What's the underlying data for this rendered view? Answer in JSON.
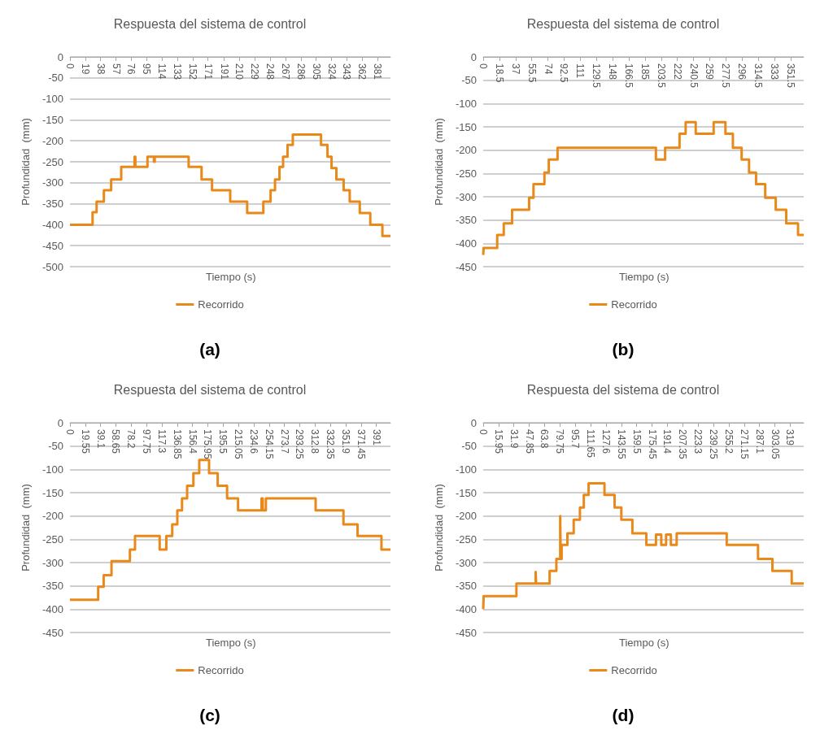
{
  "chart_data": [
    {
      "type": "step",
      "title": "Respuesta del sistema de control",
      "xlabel": "Tiempo (s)",
      "ylabel": "Profundidad  (mm)",
      "annotations": [
        "(a)"
      ],
      "legend": "bottom",
      "grid": "y",
      "xlim": [
        0,
        397
      ],
      "xticks": [
        0,
        19,
        38,
        57,
        76,
        95,
        114,
        133,
        152,
        171,
        191,
        210,
        229,
        248,
        267,
        286,
        305,
        324,
        343,
        362,
        381
      ],
      "ylim": [
        -500,
        0
      ],
      "yticks": [
        -500,
        -450,
        -400,
        -350,
        -300,
        -250,
        -200,
        -150,
        -100,
        -50,
        0
      ],
      "series": [
        {
          "name": "Recorrido",
          "color": "#e8891a",
          "x": [
            0,
            28,
            33,
            42,
            51,
            63.5,
            80,
            81,
            96,
            104,
            105,
            147,
            163,
            176,
            198.5,
            219.5,
            239.5,
            248.5,
            254,
            259.5,
            264,
            269.5,
            276,
            311,
            319,
            324,
            330,
            339,
            346.5,
            359,
            372,
            387,
            397
          ],
          "values": [
            -400,
            -370,
            -345,
            -318,
            -292,
            -262,
            -238,
            -262,
            -238,
            -250,
            -238,
            -262,
            -292,
            -318,
            -345,
            -372,
            -345,
            -318,
            -292,
            -262,
            -238,
            -210,
            -185,
            -210,
            -238,
            -265,
            -292,
            -318,
            -345,
            -372,
            -400,
            -427,
            -427
          ]
        }
      ]
    },
    {
      "type": "step",
      "title": "Respuesta del sistema de control",
      "xlabel": "Tiempo (s)",
      "ylabel": "Profundidad  (mm)",
      "annotations": [
        "(b)"
      ],
      "legend": "bottom",
      "grid": "y",
      "xlim": [
        0,
        366.5
      ],
      "xticks": [
        0,
        18.5,
        37,
        55.5,
        74,
        92.5,
        111,
        129.5,
        148,
        166.5,
        185,
        203.5,
        222,
        240.5,
        259,
        277.5,
        296,
        314.5,
        333,
        351.5
      ],
      "ylim": [
        -450,
        0
      ],
      "yticks": [
        -450,
        -400,
        -350,
        -300,
        -250,
        -200,
        -150,
        -100,
        -50,
        0
      ],
      "series": [
        {
          "name": "Recorrido",
          "color": "#e8891a",
          "x": [
            0,
            0.5,
            16,
            23.5,
            33,
            52.5,
            57.5,
            70,
            75,
            85,
            197.5,
            208,
            224.5,
            231.5,
            243,
            263.5,
            277,
            285.5,
            295.5,
            304,
            312,
            322.5,
            334.5,
            346.5,
            360,
            366.5
          ],
          "values": [
            -425,
            -410,
            -382,
            -357,
            -328,
            -302,
            -273,
            -248,
            -220,
            -195,
            -220,
            -195,
            -165,
            -140,
            -165,
            -140,
            -165,
            -195,
            -220,
            -248,
            -273,
            -302,
            -328,
            -357,
            -382,
            -382
          ]
        }
      ]
    },
    {
      "type": "step",
      "title": "Respuesta del sistema de control",
      "xlabel": "Tiempo (s)",
      "ylabel": "Profundidad  (mm)",
      "annotations": [
        "(c)"
      ],
      "legend": "bottom",
      "grid": "y",
      "xlim": [
        0,
        409
      ],
      "xticks": [
        0,
        19.55,
        39.1,
        58.65,
        78.2,
        97.75,
        117.3,
        136.85,
        156.4,
        175.95,
        195.5,
        215.05,
        234.6,
        254.15,
        273.7,
        293.25,
        312.8,
        332.35,
        351.9,
        371.45,
        391
      ],
      "ylim": [
        -450,
        0
      ],
      "yticks": [
        -450,
        -400,
        -350,
        -300,
        -250,
        -200,
        -150,
        -100,
        -50,
        0
      ],
      "series": [
        {
          "name": "Recorrido",
          "color": "#e8891a",
          "x": [
            0,
            36,
            43,
            53,
            76.5,
            83,
            114.5,
            123,
            130.5,
            137,
            143,
            149.5,
            157.5,
            165,
            177.5,
            188.5,
            200.5,
            214.5,
            244.5,
            246,
            250,
            313.5,
            349,
            367,
            397.5,
            409
          ],
          "values": [
            -380,
            -352,
            -327,
            -297,
            -272,
            -243,
            -272,
            -243,
            -218,
            -188,
            -162,
            -135,
            -108,
            -80,
            -108,
            -135,
            -162,
            -188,
            -162,
            -188,
            -162,
            -188,
            -218,
            -243,
            -272,
            -272
          ]
        }
      ]
    },
    {
      "type": "step",
      "title": "Respuesta del sistema de control",
      "xlabel": "Tiempo (s)",
      "ylabel": "Profundidad  (mm)",
      "annotations": [
        "(d)"
      ],
      "legend": "bottom",
      "grid": "y",
      "xlim": [
        0,
        333
      ],
      "xticks": [
        0,
        15.95,
        31.9,
        47.85,
        63.8,
        79.75,
        95.7,
        111.65,
        127.6,
        143.55,
        159.5,
        175.45,
        191.4,
        207.35,
        223.3,
        239.25,
        255.2,
        271.15,
        287.1,
        303.05,
        319
      ],
      "ylim": [
        -450,
        0
      ],
      "yticks": [
        -450,
        -400,
        -350,
        -300,
        -250,
        -200,
        -150,
        -100,
        -50,
        0
      ],
      "series": [
        {
          "name": "Recorrido",
          "color": "#e8891a",
          "x": [
            0,
            0.5,
            34.5,
            54.5,
            55,
            69,
            76,
            80,
            80.5,
            81.5,
            87.5,
            94,
            100.5,
            104.5,
            109.5,
            126,
            136.5,
            143.5,
            155,
            169.5,
            179.5,
            185,
            190,
            195,
            201,
            253,
            285.5,
            300.5,
            320.5,
            333
          ],
          "values": [
            -400,
            -372,
            -345,
            -320,
            -345,
            -318,
            -292,
            -200,
            -292,
            -262,
            -237,
            -208,
            -182,
            -155,
            -130,
            -155,
            -182,
            -208,
            -237,
            -262,
            -240,
            -262,
            -240,
            -262,
            -237,
            -262,
            -292,
            -318,
            -345,
            -345
          ]
        }
      ]
    }
  ]
}
